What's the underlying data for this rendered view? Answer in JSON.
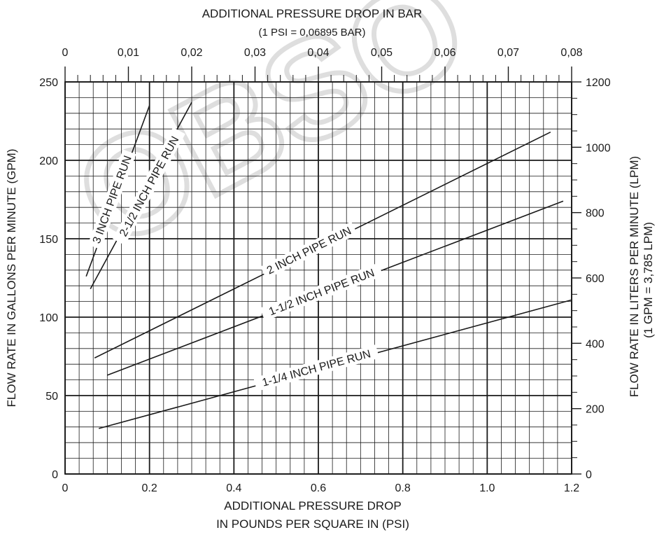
{
  "watermark": "OBSO",
  "chart_data": {
    "type": "line",
    "top_axis": {
      "title": "ADDITIONAL PRESSURE DROP IN BAR",
      "subtitle": "(1 PSI = 0,06895 BAR)",
      "range": [
        0,
        0.08
      ],
      "ticks": [
        "0",
        "0,01",
        "0,02",
        "0,03",
        "0,04",
        "0,05",
        "0,06",
        "0,07",
        "0,08"
      ]
    },
    "bottom_axis": {
      "title_line1": "ADDITIONAL PRESSURE DROP",
      "title_line2": "IN POUNDS PER SQUARE IN (PSI)",
      "range": [
        0,
        1.2
      ],
      "ticks": [
        "0",
        "0.2",
        "0.4",
        "0.6",
        "0.8",
        "1.0",
        "1.2"
      ]
    },
    "left_axis": {
      "title": "FLOW RATE IN GALLONS PER MINUTE (GPM)",
      "range": [
        0,
        250
      ],
      "ticks": [
        "0",
        "50",
        "100",
        "150",
        "200",
        "250"
      ]
    },
    "right_axis": {
      "title_line1": "FLOW RATE IN LITERS PER MINUTE (LPM)",
      "title_line2": "(1 GPM = 3,785 LPM)",
      "range": [
        0,
        1200
      ],
      "ticks": [
        "0",
        "200",
        "400",
        "600",
        "800",
        "1000",
        "1200"
      ]
    },
    "grid": true,
    "series": [
      {
        "name": "3 INCH PIPE RUN",
        "x": [
          0.05,
          0.2
        ],
        "y": [
          126,
          235
        ]
      },
      {
        "name": "2-1/2 INCH PIPE RUN",
        "x": [
          0.06,
          0.3
        ],
        "y": [
          118,
          237
        ]
      },
      {
        "name": "2 INCH PIPE RUN",
        "x": [
          0.07,
          1.15
        ],
        "y": [
          74,
          218
        ]
      },
      {
        "name": "1-1/2 INCH PIPE RUN",
        "x": [
          0.1,
          1.18
        ],
        "y": [
          63,
          174
        ]
      },
      {
        "name": "1-1/4 INCH PIPE RUN",
        "x": [
          0.08,
          1.2
        ],
        "y": [
          29,
          111
        ]
      }
    ]
  }
}
